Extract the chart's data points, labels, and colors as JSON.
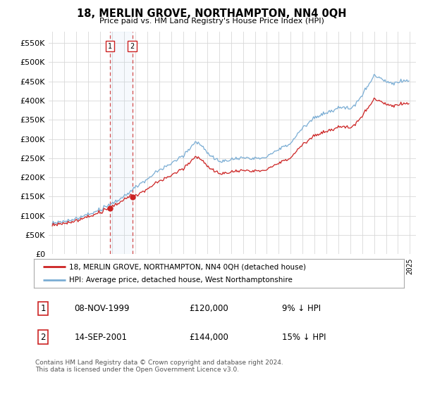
{
  "title": "18, MERLIN GROVE, NORTHAMPTON, NN4 0QH",
  "subtitle": "Price paid vs. HM Land Registry's House Price Index (HPI)",
  "legend_line1": "18, MERLIN GROVE, NORTHAMPTON, NN4 0QH (detached house)",
  "legend_line2": "HPI: Average price, detached house, West Northamptonshire",
  "transaction1_date": "08-NOV-1999",
  "transaction1_price": "£120,000",
  "transaction1_hpi": "9% ↓ HPI",
  "transaction2_date": "14-SEP-2001",
  "transaction2_price": "£144,000",
  "transaction2_hpi": "15% ↓ HPI",
  "footer": "Contains HM Land Registry data © Crown copyright and database right 2024.\nThis data is licensed under the Open Government Licence v3.0.",
  "hpi_color": "#7aadd4",
  "price_color": "#cc2222",
  "ylim": [
    0,
    580000
  ],
  "yticks": [
    0,
    50000,
    100000,
    150000,
    200000,
    250000,
    300000,
    350000,
    400000,
    450000,
    500000,
    550000
  ],
  "xlim_start": 1994.7,
  "xlim_end": 2025.5,
  "background_color": "#ffffff",
  "grid_color": "#d8d8d8",
  "transaction1_x": 1999.87,
  "transaction2_x": 2001.71
}
